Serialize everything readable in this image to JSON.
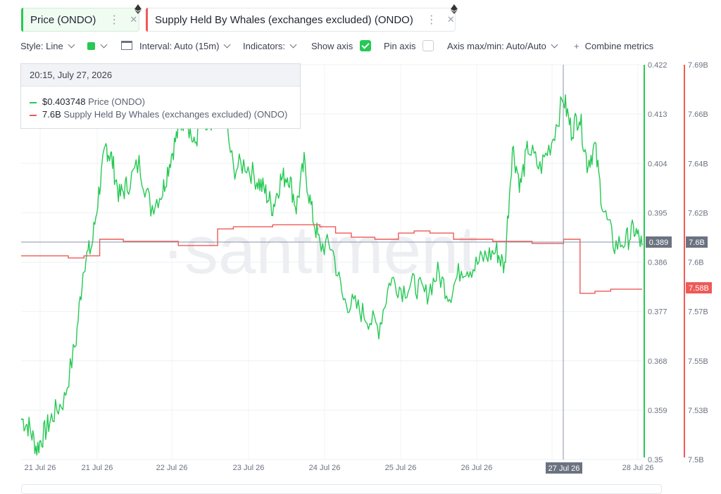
{
  "metric_tags": [
    {
      "label": "Price (ONDO)",
      "color": "#26c953"
    },
    {
      "label": "Supply Held By Whales (exchanges excluded) (ONDO)",
      "color": "#ee5a57"
    }
  ],
  "toolbar": {
    "style_label": "Style: Line",
    "interval_label": "Interval: Auto (15m)",
    "indicators_label": "Indicators:",
    "show_axis_label": "Show axis",
    "show_axis_checked": true,
    "pin_axis_label": "Pin axis",
    "pin_axis_checked": false,
    "axis_maxmin_label": "Axis max/min: Auto/Auto",
    "combine_label": "Combine metrics"
  },
  "tooltip": {
    "datetime": "20:15, July 27, 2026",
    "rows": [
      {
        "value": "$0.403748",
        "name": "Price (ONDO)",
        "color": "#26c953"
      },
      {
        "value": "7.6B",
        "name": "Supply Held By Whales (exchanges excluded) (ONDO)",
        "color": "#ee5a57"
      }
    ]
  },
  "watermark": "·santiment·",
  "chart_data": {
    "type": "line",
    "x_tick_labels": [
      "21 Jul 26",
      "21 Jul 26",
      "22 Jul 26",
      "23 Jul 26",
      "24 Jul 26",
      "25 Jul 26",
      "26 Jul 26",
      "27",
      "28 Jul 26"
    ],
    "crosshair_x_label": "27 Jul 26",
    "price_axis": {
      "tick_labels": [
        "0.422",
        "0.413",
        "0.404",
        "0.395",
        "0.386",
        "0.377",
        "0.368",
        "0.359",
        "0.35"
      ],
      "ylim": [
        0.35,
        0.422
      ],
      "current_label": "0.389",
      "color": "#26c953"
    },
    "supply_axis": {
      "tick_labels": [
        "7.69B",
        "7.66B",
        "7.64B",
        "7.62B",
        "7.6B",
        "7.57B",
        "7.55B",
        "7.53B",
        "7.5B"
      ],
      "ylim": [
        7.5,
        7.69
      ],
      "current_label": "7.6B",
      "marker_label": "7.58B",
      "color": "#ee5a57"
    },
    "series": [
      {
        "name": "Price (ONDO)",
        "color": "#26c953",
        "t": [
          0,
          0.1,
          0.2,
          0.3,
          0.4,
          0.55,
          0.7,
          0.8,
          0.9,
          1.0,
          1.08,
          1.15,
          1.25,
          1.35,
          1.5,
          1.65,
          1.8,
          1.9,
          2.0,
          2.1,
          2.2,
          2.3,
          2.4,
          2.55,
          2.7,
          2.85,
          3.0,
          3.1,
          3.2,
          3.3,
          3.4,
          3.5,
          3.6,
          3.7,
          3.8,
          3.95,
          4.1,
          4.25,
          4.4,
          4.55,
          4.7,
          4.85,
          5.0,
          5.15,
          5.3,
          5.45,
          5.6,
          5.75,
          5.9,
          6.05,
          6.15,
          6.25,
          6.35,
          6.45,
          6.6,
          6.75,
          6.9,
          7.0,
          7.1,
          7.2,
          7.3,
          7.4,
          7.55,
          7.7,
          7.8,
          7.9
        ],
        "values": [
          0.3575,
          0.356,
          0.352,
          0.355,
          0.358,
          0.361,
          0.372,
          0.386,
          0.389,
          0.4,
          0.407,
          0.405,
          0.398,
          0.4,
          0.404,
          0.396,
          0.399,
          0.405,
          0.41,
          0.413,
          0.407,
          0.412,
          0.409,
          0.416,
          0.403,
          0.404,
          0.401,
          0.399,
          0.396,
          0.401,
          0.402,
          0.396,
          0.404,
          0.395,
          0.389,
          0.389,
          0.379,
          0.378,
          0.376,
          0.374,
          0.383,
          0.381,
          0.382,
          0.38,
          0.384,
          0.38,
          0.385,
          0.385,
          0.387,
          0.388,
          0.385,
          0.407,
          0.4,
          0.407,
          0.403,
          0.408,
          0.416,
          0.41,
          0.413,
          0.404,
          0.407,
          0.396,
          0.389,
          0.39,
          0.392,
          0.389
        ]
      },
      {
        "name": "Supply Held By Whales (exchanges excluded) (ONDO)",
        "color": "#ee5a57",
        "t": [
          0,
          0.5,
          0.6,
          0.7,
          0.8,
          1.0,
          1.3,
          1.6,
          2.0,
          2.2,
          2.4,
          2.5,
          2.7,
          3.0,
          3.2,
          3.4,
          3.5,
          3.6,
          3.8,
          4.0,
          4.2,
          4.5,
          4.8,
          5.0,
          5.2,
          5.5,
          5.8,
          6.0,
          6.2,
          6.5,
          6.9,
          7.1,
          7.11,
          7.3,
          7.5,
          7.9
        ],
        "values": [
          7.598,
          7.598,
          7.597,
          7.597,
          7.598,
          7.606,
          7.605,
          7.605,
          7.603,
          7.603,
          7.603,
          7.611,
          7.612,
          7.612,
          7.613,
          7.613,
          7.613,
          7.613,
          7.612,
          7.609,
          7.607,
          7.606,
          7.609,
          7.61,
          7.609,
          7.606,
          7.606,
          7.605,
          7.605,
          7.604,
          7.606,
          7.606,
          7.58,
          7.581,
          7.582,
          7.582
        ]
      }
    ],
    "grid": true,
    "legend": "tooltip top-left"
  }
}
